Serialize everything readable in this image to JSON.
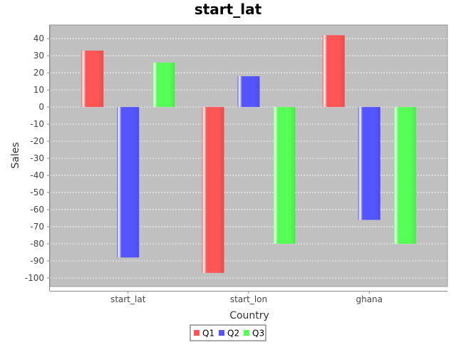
{
  "chart_data": {
    "type": "bar",
    "title": "start_lat",
    "xlabel": "Country",
    "ylabel": "Sales",
    "categories": [
      "start_lat",
      "start_lon",
      "ghana"
    ],
    "series": [
      {
        "name": "Q1",
        "values": [
          33,
          -97,
          42
        ],
        "color": "#ff5555"
      },
      {
        "name": "Q2",
        "values": [
          -88,
          18,
          -66
        ],
        "color": "#5555ff"
      },
      {
        "name": "Q3",
        "values": [
          26,
          -80,
          -80
        ],
        "color": "#55ff55"
      }
    ],
    "ylim": [
      -105,
      48
    ],
    "yticks": [
      40,
      30,
      20,
      10,
      0,
      -10,
      -20,
      -30,
      -40,
      -50,
      -60,
      -70,
      -80,
      -90,
      -100
    ],
    "grid": true,
    "legend": "bottom-center",
    "plot_background": "#c0c0c0"
  }
}
